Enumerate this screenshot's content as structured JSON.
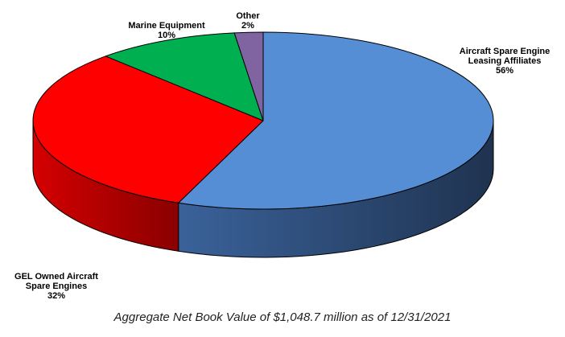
{
  "chart_data": {
    "type": "pie",
    "three_d": true,
    "title": "",
    "caption": "Aggregate Net Book Value of $1,048.7 million as of 12/31/2021",
    "legend": "none",
    "slices": [
      {
        "label_lines": [
          "Aircraft Spare Engine",
          "Leasing Affiliates"
        ],
        "value": 56,
        "value_label": "56%",
        "color": "#558ED5",
        "side_dark": "#1F3350",
        "side_light": "#3A629A"
      },
      {
        "label_lines": [
          "GEL Owned Aircraft",
          "Spare Engines"
        ],
        "value": 32,
        "value_label": "32%",
        "color": "#FF0000",
        "side_dark": "#8A0000",
        "side_light": "#D40000"
      },
      {
        "label_lines": [
          "Marine Equipment"
        ],
        "value": 10,
        "value_label": "10%",
        "color": "#00B050",
        "side_dark": "#006B2F",
        "side_light": "#009444"
      },
      {
        "label_lines": [
          "Other"
        ],
        "value": 2,
        "value_label": "2%",
        "color": "#8064A2",
        "side_dark": "#4A3A5E",
        "side_light": "#6B548A"
      }
    ]
  }
}
